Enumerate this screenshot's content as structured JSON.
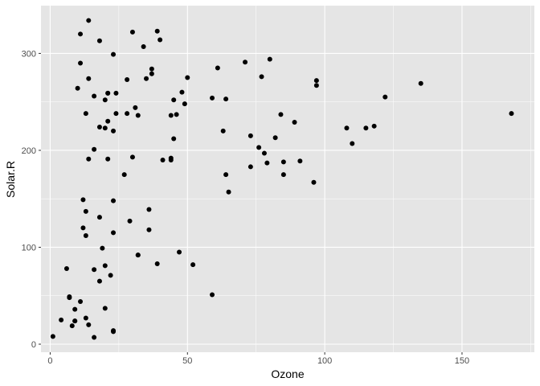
{
  "chart_data": {
    "type": "scatter",
    "xlabel": "Ozone",
    "ylabel": "Solar.R",
    "xlim": [
      -3.35,
      176.35
    ],
    "ylim": [
      -8.3,
      349.3
    ],
    "x_ticks": [
      0,
      50,
      100,
      150
    ],
    "y_ticks": [
      0,
      100,
      200,
      300
    ],
    "grid": true,
    "background": "#e5e5e5",
    "point_color": "#000000",
    "points": [
      [
        41,
        190
      ],
      [
        36,
        118
      ],
      [
        12,
        149
      ],
      [
        18,
        313
      ],
      [
        23,
        299
      ],
      [
        19,
        99
      ],
      [
        8,
        19
      ],
      [
        16,
        256
      ],
      [
        11,
        290
      ],
      [
        14,
        274
      ],
      [
        18,
        65
      ],
      [
        14,
        334
      ],
      [
        34,
        307
      ],
      [
        6,
        78
      ],
      [
        30,
        322
      ],
      [
        11,
        44
      ],
      [
        1,
        8
      ],
      [
        11,
        320
      ],
      [
        4,
        25
      ],
      [
        32,
        92
      ],
      [
        23,
        13
      ],
      [
        45,
        252
      ],
      [
        115,
        223
      ],
      [
        37,
        279
      ],
      [
        29,
        127
      ],
      [
        71,
        291
      ],
      [
        39,
        323
      ],
      [
        23,
        148
      ],
      [
        21,
        191
      ],
      [
        37,
        284
      ],
      [
        20,
        37
      ],
      [
        12,
        120
      ],
      [
        13,
        137
      ],
      [
        135,
        269
      ],
      [
        49,
        248
      ],
      [
        32,
        236
      ],
      [
        64,
        175
      ],
      [
        40,
        314
      ],
      [
        77,
        276
      ],
      [
        97,
        267
      ],
      [
        97,
        272
      ],
      [
        85,
        175
      ],
      [
        10,
        264
      ],
      [
        27,
        175
      ],
      [
        7,
        48
      ],
      [
        48,
        260
      ],
      [
        35,
        274
      ],
      [
        61,
        285
      ],
      [
        79,
        187
      ],
      [
        63,
        220
      ],
      [
        16,
        7
      ],
      [
        80,
        294
      ],
      [
        108,
        223
      ],
      [
        20,
        81
      ],
      [
        52,
        82
      ],
      [
        82,
        213
      ],
      [
        50,
        275
      ],
      [
        64,
        253
      ],
      [
        59,
        254
      ],
      [
        39,
        83
      ],
      [
        9,
        24
      ],
      [
        16,
        77
      ],
      [
        122,
        255
      ],
      [
        89,
        229
      ],
      [
        110,
        207
      ],
      [
        44,
        192
      ],
      [
        28,
        273
      ],
      [
        65,
        157
      ],
      [
        22,
        71
      ],
      [
        59,
        51
      ],
      [
        23,
        115
      ],
      [
        31,
        244
      ],
      [
        44,
        190
      ],
      [
        21,
        259
      ],
      [
        9,
        36
      ],
      [
        45,
        212
      ],
      [
        168,
        238
      ],
      [
        73,
        215
      ],
      [
        76,
        203
      ],
      [
        118,
        225
      ],
      [
        84,
        237
      ],
      [
        85,
        188
      ],
      [
        96,
        167
      ],
      [
        78,
        197
      ],
      [
        73,
        183
      ],
      [
        91,
        189
      ],
      [
        47,
        95
      ],
      [
        32,
        92
      ],
      [
        20,
        252
      ],
      [
        23,
        220
      ],
      [
        21,
        230
      ],
      [
        24,
        259
      ],
      [
        44,
        236
      ],
      [
        21,
        259
      ],
      [
        28,
        238
      ],
      [
        9,
        24
      ],
      [
        13,
        112
      ],
      [
        46,
        237
      ],
      [
        18,
        224
      ],
      [
        13,
        27
      ],
      [
        24,
        238
      ],
      [
        16,
        201
      ],
      [
        13,
        238
      ],
      [
        23,
        14
      ],
      [
        36,
        139
      ],
      [
        7,
        49
      ],
      [
        14,
        20
      ],
      [
        30,
        193
      ],
      [
        14,
        191
      ],
      [
        18,
        131
      ],
      [
        20,
        223
      ]
    ]
  }
}
